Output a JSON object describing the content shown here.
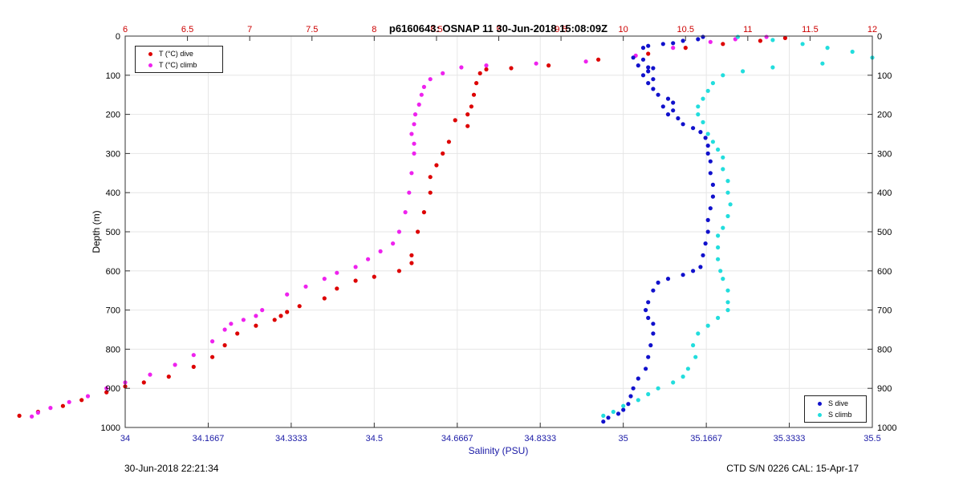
{
  "chart_data": {
    "type": "scatter",
    "title": "p6160643: OSNAP 11 30-Jun-2018 15:08:09Z",
    "xlabel": "Salinity (PSU)",
    "ylabel": "Depth (m)",
    "ylim": [
      0,
      1000
    ],
    "y_reversed": true,
    "yticks": [
      0,
      100,
      200,
      300,
      400,
      500,
      600,
      700,
      800,
      900,
      1000
    ],
    "xlim_salinity": [
      34,
      35.5
    ],
    "xticks_salinity": [
      "34",
      "34.1667",
      "34.3333",
      "34.5",
      "34.6667",
      "34.8333",
      "35",
      "35.1667",
      "35.3333",
      "35.5"
    ],
    "xlim_temperature": [
      6,
      12
    ],
    "xticks_temperature": [
      "6",
      "6.5",
      "7",
      "7.5",
      "8",
      "8.5",
      "9",
      "9.5",
      "10",
      "10.5",
      "11",
      "11.5",
      "12"
    ],
    "grid": true,
    "legend_temperature": {
      "placement": "top-left",
      "entries": [
        "T (°C) dive",
        "T (°C) climb"
      ]
    },
    "legend_salinity": {
      "placement": "bottom-right",
      "entries": [
        "S dive",
        "S climb"
      ]
    },
    "series": [
      {
        "name": "T (°C) dive",
        "axis": "temperature",
        "color": "#dd0000",
        "points": [
          [
            11.3,
            5
          ],
          [
            11.1,
            12
          ],
          [
            10.8,
            20
          ],
          [
            10.5,
            30
          ],
          [
            10.2,
            45
          ],
          [
            9.8,
            60
          ],
          [
            9.4,
            75
          ],
          [
            9.1,
            82
          ],
          [
            8.9,
            85
          ],
          [
            8.85,
            95
          ],
          [
            8.82,
            120
          ],
          [
            8.8,
            150
          ],
          [
            8.78,
            180
          ],
          [
            8.75,
            200
          ],
          [
            8.65,
            215
          ],
          [
            8.75,
            230
          ],
          [
            8.6,
            270
          ],
          [
            8.55,
            300
          ],
          [
            8.5,
            330
          ],
          [
            8.45,
            360
          ],
          [
            8.45,
            400
          ],
          [
            8.4,
            450
          ],
          [
            8.35,
            500
          ],
          [
            8.3,
            560
          ],
          [
            8.3,
            580
          ],
          [
            8.2,
            600
          ],
          [
            8.0,
            615
          ],
          [
            7.85,
            625
          ],
          [
            7.7,
            645
          ],
          [
            7.6,
            670
          ],
          [
            7.4,
            690
          ],
          [
            7.3,
            705
          ],
          [
            7.25,
            715
          ],
          [
            7.2,
            725
          ],
          [
            7.05,
            740
          ],
          [
            6.9,
            760
          ],
          [
            6.8,
            790
          ],
          [
            6.7,
            820
          ],
          [
            6.55,
            845
          ],
          [
            6.35,
            870
          ],
          [
            6.15,
            885
          ],
          [
            6.0,
            895
          ],
          [
            5.85,
            910
          ],
          [
            5.65,
            930
          ],
          [
            5.5,
            945
          ],
          [
            5.3,
            960
          ],
          [
            5.15,
            970
          ]
        ]
      },
      {
        "name": "T (°C) climb",
        "axis": "temperature",
        "color": "#ee22ee",
        "points": [
          [
            11.15,
            2
          ],
          [
            10.9,
            8
          ],
          [
            10.7,
            15
          ],
          [
            10.4,
            30
          ],
          [
            10.1,
            50
          ],
          [
            9.7,
            65
          ],
          [
            9.3,
            70
          ],
          [
            8.9,
            75
          ],
          [
            8.7,
            80
          ],
          [
            8.55,
            95
          ],
          [
            8.45,
            110
          ],
          [
            8.4,
            130
          ],
          [
            8.38,
            150
          ],
          [
            8.36,
            175
          ],
          [
            8.33,
            200
          ],
          [
            8.32,
            225
          ],
          [
            8.3,
            250
          ],
          [
            8.32,
            275
          ],
          [
            8.32,
            300
          ],
          [
            8.3,
            350
          ],
          [
            8.28,
            400
          ],
          [
            8.25,
            450
          ],
          [
            8.2,
            500
          ],
          [
            8.15,
            530
          ],
          [
            8.05,
            550
          ],
          [
            7.95,
            570
          ],
          [
            7.85,
            590
          ],
          [
            7.7,
            605
          ],
          [
            7.6,
            620
          ],
          [
            7.45,
            640
          ],
          [
            7.3,
            660
          ],
          [
            7.1,
            700
          ],
          [
            7.05,
            715
          ],
          [
            6.95,
            725
          ],
          [
            6.85,
            735
          ],
          [
            6.8,
            750
          ],
          [
            6.7,
            780
          ],
          [
            6.55,
            815
          ],
          [
            6.4,
            840
          ],
          [
            6.2,
            865
          ],
          [
            6.0,
            885
          ],
          [
            5.85,
            900
          ],
          [
            5.7,
            920
          ],
          [
            5.55,
            935
          ],
          [
            5.4,
            950
          ],
          [
            5.3,
            962
          ],
          [
            5.25,
            972
          ]
        ]
      },
      {
        "name": "S dive",
        "axis": "salinity",
        "color": "#1111cc",
        "points": [
          [
            35.16,
            2
          ],
          [
            35.15,
            8
          ],
          [
            35.12,
            12
          ],
          [
            35.1,
            18
          ],
          [
            35.08,
            20
          ],
          [
            35.05,
            25
          ],
          [
            35.04,
            30
          ],
          [
            35.02,
            55
          ],
          [
            35.04,
            60
          ],
          [
            35.03,
            75
          ],
          [
            35.05,
            80
          ],
          [
            35.06,
            82
          ],
          [
            35.05,
            90
          ],
          [
            35.04,
            100
          ],
          [
            35.06,
            110
          ],
          [
            35.05,
            120
          ],
          [
            35.06,
            135
          ],
          [
            35.07,
            150
          ],
          [
            35.09,
            160
          ],
          [
            35.1,
            170
          ],
          [
            35.08,
            180
          ],
          [
            35.1,
            190
          ],
          [
            35.09,
            200
          ],
          [
            35.11,
            210
          ],
          [
            35.12,
            225
          ],
          [
            35.14,
            235
          ],
          [
            35.155,
            245
          ],
          [
            35.165,
            260
          ],
          [
            35.17,
            280
          ],
          [
            35.17,
            300
          ],
          [
            35.175,
            320
          ],
          [
            35.175,
            350
          ],
          [
            35.18,
            380
          ],
          [
            35.18,
            410
          ],
          [
            35.175,
            440
          ],
          [
            35.17,
            470
          ],
          [
            35.17,
            500
          ],
          [
            35.165,
            530
          ],
          [
            35.16,
            560
          ],
          [
            35.155,
            590
          ],
          [
            35.14,
            600
          ],
          [
            35.12,
            610
          ],
          [
            35.09,
            620
          ],
          [
            35.07,
            630
          ],
          [
            35.06,
            650
          ],
          [
            35.05,
            680
          ],
          [
            35.045,
            700
          ],
          [
            35.05,
            720
          ],
          [
            35.06,
            735
          ],
          [
            35.06,
            760
          ],
          [
            35.055,
            790
          ],
          [
            35.05,
            820
          ],
          [
            35.045,
            850
          ],
          [
            35.03,
            875
          ],
          [
            35.02,
            900
          ],
          [
            35.015,
            920
          ],
          [
            35.01,
            940
          ],
          [
            35.0,
            955
          ],
          [
            34.99,
            965
          ],
          [
            34.97,
            975
          ],
          [
            34.96,
            985
          ]
        ]
      },
      {
        "name": "S climb",
        "axis": "salinity",
        "color": "#22dddd",
        "points": [
          [
            35.23,
            2
          ],
          [
            35.3,
            10
          ],
          [
            35.36,
            20
          ],
          [
            35.41,
            30
          ],
          [
            35.46,
            40
          ],
          [
            35.5,
            55
          ],
          [
            35.4,
            70
          ],
          [
            35.3,
            80
          ],
          [
            35.24,
            90
          ],
          [
            35.2,
            100
          ],
          [
            35.18,
            120
          ],
          [
            35.17,
            140
          ],
          [
            35.16,
            160
          ],
          [
            35.15,
            180
          ],
          [
            35.15,
            200
          ],
          [
            35.16,
            220
          ],
          [
            35.17,
            250
          ],
          [
            35.18,
            270
          ],
          [
            35.19,
            290
          ],
          [
            35.2,
            310
          ],
          [
            35.2,
            340
          ],
          [
            35.21,
            370
          ],
          [
            35.21,
            400
          ],
          [
            35.215,
            430
          ],
          [
            35.21,
            460
          ],
          [
            35.2,
            490
          ],
          [
            35.19,
            510
          ],
          [
            35.19,
            540
          ],
          [
            35.19,
            570
          ],
          [
            35.195,
            600
          ],
          [
            35.2,
            620
          ],
          [
            35.21,
            650
          ],
          [
            35.21,
            680
          ],
          [
            35.21,
            700
          ],
          [
            35.19,
            720
          ],
          [
            35.17,
            740
          ],
          [
            35.15,
            760
          ],
          [
            35.14,
            790
          ],
          [
            35.145,
            820
          ],
          [
            35.13,
            850
          ],
          [
            35.12,
            870
          ],
          [
            35.1,
            885
          ],
          [
            35.07,
            900
          ],
          [
            35.05,
            915
          ],
          [
            35.03,
            930
          ],
          [
            35.0,
            945
          ],
          [
            34.98,
            960
          ],
          [
            34.96,
            970
          ]
        ]
      }
    ]
  },
  "footer": {
    "timestamp": "30-Jun-2018 22:21:34",
    "ctd_info": "CTD S/N 0226  CAL: 15-Apr-17"
  }
}
